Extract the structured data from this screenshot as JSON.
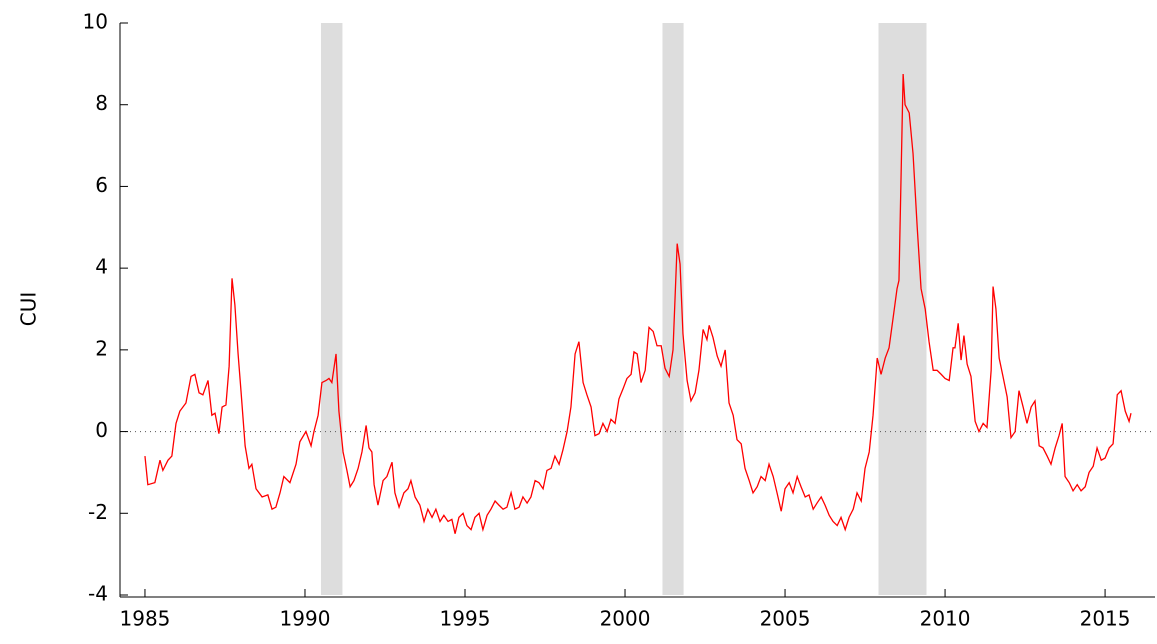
{
  "chart_data": {
    "type": "line",
    "ylabel": "CUI",
    "color": "#ff0000",
    "xlim": [
      1984.22,
      2016.56
    ],
    "xticks": [
      1985,
      1990,
      1995,
      2000,
      2005,
      2010,
      2015
    ],
    "ylim": [
      -4,
      10
    ],
    "yticks": [
      -4,
      -2,
      0,
      2,
      4,
      6,
      8,
      10
    ],
    "reference_line": 0,
    "recessions": [
      [
        1990.5,
        1991.17
      ],
      [
        2001.17,
        2001.83
      ],
      [
        2007.92,
        2009.42
      ]
    ],
    "recession_color": "#dddddd",
    "x": [
      1985.0,
      1985.09,
      1985.31,
      1985.47,
      1985.56,
      1985.72,
      1985.84,
      1985.97,
      1986.09,
      1986.28,
      1986.44,
      1986.56,
      1986.69,
      1986.81,
      1986.97,
      1987.09,
      1987.19,
      1987.31,
      1987.41,
      1987.53,
      1987.63,
      1987.72,
      1987.81,
      1987.91,
      1988.0,
      1988.13,
      1988.25,
      1988.34,
      1988.47,
      1988.66,
      1988.84,
      1988.97,
      1989.09,
      1989.22,
      1989.34,
      1989.53,
      1989.72,
      1989.84,
      1990.03,
      1990.19,
      1990.28,
      1990.41,
      1990.53,
      1990.66,
      1990.75,
      1990.84,
      1990.97,
      1991.06,
      1991.19,
      1991.31,
      1991.41,
      1991.53,
      1991.66,
      1991.78,
      1991.91,
      1992.0,
      1992.09,
      1992.16,
      1992.28,
      1992.44,
      1992.56,
      1992.72,
      1992.81,
      1992.94,
      1993.09,
      1993.22,
      1993.31,
      1993.44,
      1993.59,
      1993.72,
      1993.84,
      1993.97,
      1994.09,
      1994.22,
      1994.34,
      1994.47,
      1994.59,
      1994.69,
      1994.81,
      1994.94,
      1995.06,
      1995.19,
      1995.31,
      1995.44,
      1995.56,
      1995.69,
      1995.81,
      1995.94,
      1996.06,
      1996.19,
      1996.31,
      1996.44,
      1996.56,
      1996.69,
      1996.81,
      1996.94,
      1997.06,
      1997.19,
      1997.31,
      1997.44,
      1997.56,
      1997.69,
      1997.81,
      1997.94,
      1998.06,
      1998.19,
      1998.31,
      1998.44,
      1998.56,
      1998.69,
      1998.81,
      1998.94,
      1999.06,
      1999.19,
      1999.31,
      1999.44,
      1999.56,
      1999.69,
      1999.81,
      1999.94,
      2000.06,
      2000.19,
      2000.28,
      2000.38,
      2000.5,
      2000.63,
      2000.75,
      2000.88,
      2001.0,
      2001.13,
      2001.25,
      2001.38,
      2001.5,
      2001.63,
      2001.72,
      2001.81,
      2001.94,
      2002.06,
      2002.19,
      2002.31,
      2002.44,
      2002.56,
      2002.63,
      2002.75,
      2002.88,
      2003.0,
      2003.13,
      2003.25,
      2003.38,
      2003.5,
      2003.63,
      2003.75,
      2003.88,
      2004.0,
      2004.13,
      2004.25,
      2004.38,
      2004.5,
      2004.63,
      2004.75,
      2004.88,
      2005.0,
      2005.13,
      2005.25,
      2005.38,
      2005.5,
      2005.63,
      2005.75,
      2005.88,
      2006.0,
      2006.13,
      2006.25,
      2006.38,
      2006.5,
      2006.63,
      2006.75,
      2006.88,
      2007.0,
      2007.13,
      2007.25,
      2007.38,
      2007.5,
      2007.63,
      2007.75,
      2007.88,
      2008.0,
      2008.13,
      2008.25,
      2008.38,
      2008.5,
      2008.56,
      2008.69,
      2008.75,
      2008.88,
      2009.0,
      2009.13,
      2009.25,
      2009.38,
      2009.5,
      2009.63,
      2009.75,
      2009.88,
      2010.0,
      2010.13,
      2010.25,
      2010.31,
      2010.41,
      2010.5,
      2010.59,
      2010.69,
      2010.81,
      2010.94,
      2011.06,
      2011.19,
      2011.31,
      2011.44,
      2011.5,
      2011.59,
      2011.69,
      2011.81,
      2011.94,
      2012.06,
      2012.19,
      2012.31,
      2012.44,
      2012.56,
      2012.69,
      2012.81,
      2012.94,
      2013.06,
      2013.19,
      2013.31,
      2013.44,
      2013.56,
      2013.66,
      2013.75,
      2013.88,
      2014.0,
      2014.13,
      2014.25,
      2014.38,
      2014.5,
      2014.63,
      2014.75,
      2014.88,
      2015.0,
      2015.13,
      2015.25,
      2015.38,
      2015.5,
      2015.63,
      2015.75,
      2015.81
    ],
    "values": [
      -0.6,
      -1.3,
      -1.25,
      -0.7,
      -0.95,
      -0.7,
      -0.6,
      0.2,
      0.5,
      0.7,
      1.35,
      1.4,
      0.95,
      0.9,
      1.25,
      0.4,
      0.45,
      -0.05,
      0.6,
      0.65,
      1.6,
      3.75,
      3.1,
      1.9,
      1.0,
      -0.35,
      -0.9,
      -0.8,
      -1.4,
      -1.6,
      -1.55,
      -1.9,
      -1.85,
      -1.5,
      -1.1,
      -1.25,
      -0.8,
      -0.25,
      0.0,
      -0.35,
      0.0,
      0.4,
      1.2,
      1.25,
      1.3,
      1.2,
      1.9,
      0.5,
      -0.5,
      -0.95,
      -1.35,
      -1.2,
      -0.9,
      -0.5,
      0.15,
      -0.4,
      -0.5,
      -1.3,
      -1.8,
      -1.2,
      -1.1,
      -0.75,
      -1.5,
      -1.85,
      -1.5,
      -1.4,
      -1.2,
      -1.6,
      -1.8,
      -2.2,
      -1.9,
      -2.1,
      -1.9,
      -2.2,
      -2.05,
      -2.2,
      -2.15,
      -2.5,
      -2.1,
      -2.0,
      -2.3,
      -2.4,
      -2.1,
      -2.0,
      -2.4,
      -2.05,
      -1.9,
      -1.7,
      -1.8,
      -1.9,
      -1.85,
      -1.5,
      -1.9,
      -1.85,
      -1.6,
      -1.75,
      -1.6,
      -1.2,
      -1.25,
      -1.4,
      -0.95,
      -0.9,
      -0.6,
      -0.8,
      -0.45,
      0.0,
      0.6,
      1.9,
      2.2,
      1.2,
      0.9,
      0.6,
      -0.1,
      -0.05,
      0.2,
      0.0,
      0.3,
      0.2,
      0.8,
      1.05,
      1.3,
      1.4,
      1.95,
      1.9,
      1.2,
      1.5,
      2.55,
      2.45,
      2.1,
      2.1,
      1.55,
      1.35,
      2.0,
      4.6,
      4.1,
      2.4,
      1.25,
      0.75,
      0.95,
      1.5,
      2.5,
      2.25,
      2.6,
      2.3,
      1.85,
      1.6,
      2.0,
      0.7,
      0.4,
      -0.2,
      -0.3,
      -0.9,
      -1.2,
      -1.5,
      -1.35,
      -1.1,
      -1.2,
      -0.8,
      -1.1,
      -1.5,
      -1.95,
      -1.4,
      -1.25,
      -1.5,
      -1.1,
      -1.35,
      -1.6,
      -1.55,
      -1.9,
      -1.75,
      -1.6,
      -1.8,
      -2.05,
      -2.2,
      -2.3,
      -2.1,
      -2.4,
      -2.1,
      -1.9,
      -1.5,
      -1.7,
      -0.9,
      -0.5,
      0.4,
      1.8,
      1.4,
      1.8,
      2.05,
      2.8,
      3.5,
      3.7,
      8.75,
      8.0,
      7.8,
      6.8,
      5.0,
      3.5,
      3.0,
      2.2,
      1.5,
      1.5,
      1.4,
      1.3,
      1.25,
      2.05,
      2.05,
      2.65,
      1.75,
      2.35,
      1.65,
      1.35,
      0.25,
      0.0,
      0.2,
      0.1,
      1.5,
      3.55,
      3.0,
      1.8,
      1.35,
      0.85,
      -0.15,
      0.0,
      1.0,
      0.6,
      0.2,
      0.6,
      0.75,
      -0.35,
      -0.4,
      -0.6,
      -0.8,
      -0.4,
      -0.1,
      0.2,
      -1.1,
      -1.25,
      -1.45,
      -1.3,
      -1.45,
      -1.35,
      -1.0,
      -0.85,
      -0.4,
      -0.7,
      -0.65,
      -0.4,
      -0.3,
      0.9,
      1.0,
      0.5,
      0.25,
      0.45
    ]
  }
}
